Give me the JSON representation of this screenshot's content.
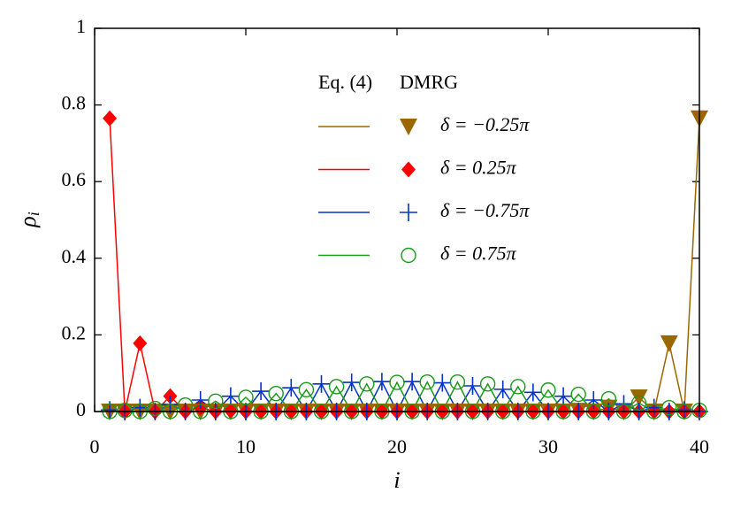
{
  "chart_data": {
    "type": "line",
    "xlabel": "i",
    "ylabel": {
      "symbol": "ρ",
      "subscript": "i"
    },
    "legend_headers": [
      "Eq. (4)",
      "DMRG"
    ],
    "x": [
      1,
      2,
      3,
      4,
      5,
      6,
      7,
      8,
      9,
      10,
      11,
      12,
      13,
      14,
      15,
      16,
      17,
      18,
      19,
      20,
      21,
      22,
      23,
      24,
      25,
      26,
      27,
      28,
      29,
      30,
      31,
      32,
      33,
      34,
      35,
      36,
      37,
      38,
      39,
      40
    ],
    "series": [
      {
        "name": "δ = −0.25π",
        "color": "#9a6700",
        "marker": "triangle-down",
        "values": [
          0,
          0,
          0,
          0,
          0,
          0,
          0,
          0,
          0,
          0,
          0,
          0,
          0,
          0,
          0,
          0,
          0,
          0,
          0,
          0,
          0,
          0,
          0,
          0,
          0,
          0,
          0,
          0,
          0,
          0,
          0,
          0.002,
          0,
          0.01,
          0,
          0.037,
          0,
          0.178,
          0,
          0.765
        ]
      },
      {
        "name": "δ = 0.25π",
        "color": "#ff0000",
        "marker": "diamond",
        "values": [
          0.765,
          0,
          0.178,
          0,
          0.04,
          0,
          0.01,
          0,
          0.002,
          0,
          0,
          0,
          0,
          0,
          0,
          0,
          0,
          0,
          0,
          0,
          0,
          0,
          0,
          0,
          0,
          0,
          0,
          0,
          0,
          0,
          0,
          0,
          0,
          0,
          0,
          0,
          0,
          0,
          0,
          0
        ]
      },
      {
        "name": "δ = −0.75π",
        "color": "#0033cc",
        "marker": "plus",
        "values": [
          0.004,
          0,
          0.01,
          0,
          0.018,
          0,
          0.03,
          0,
          0.04,
          0,
          0.053,
          0,
          0.062,
          0,
          0.072,
          0,
          0.076,
          0,
          0.078,
          0,
          0.078,
          0,
          0.075,
          0,
          0.067,
          0,
          0.058,
          0,
          0.05,
          0,
          0.04,
          0,
          0.03,
          0,
          0.02,
          0,
          0.01,
          0,
          0.004,
          0
        ]
      },
      {
        "name": "δ = 0.75π",
        "color": "#1a9a1a",
        "marker": "circle",
        "values": [
          0,
          0.003,
          0,
          0.008,
          0,
          0.017,
          0,
          0.027,
          0,
          0.037,
          0,
          0.047,
          0,
          0.057,
          0,
          0.065,
          0,
          0.072,
          0,
          0.076,
          0,
          0.077,
          0,
          0.077,
          0,
          0.072,
          0,
          0.065,
          0,
          0.056,
          0,
          0.045,
          0,
          0.033,
          0,
          0.022,
          0,
          0.01,
          0,
          0.003
        ]
      }
    ],
    "xlim": [
      0,
      40
    ],
    "xticks": [
      0,
      10,
      20,
      30,
      40
    ],
    "ylim": [
      0,
      1
    ],
    "yticks": [
      0,
      0.2,
      0.4,
      0.6,
      0.8,
      1
    ],
    "legend": "upper center"
  }
}
